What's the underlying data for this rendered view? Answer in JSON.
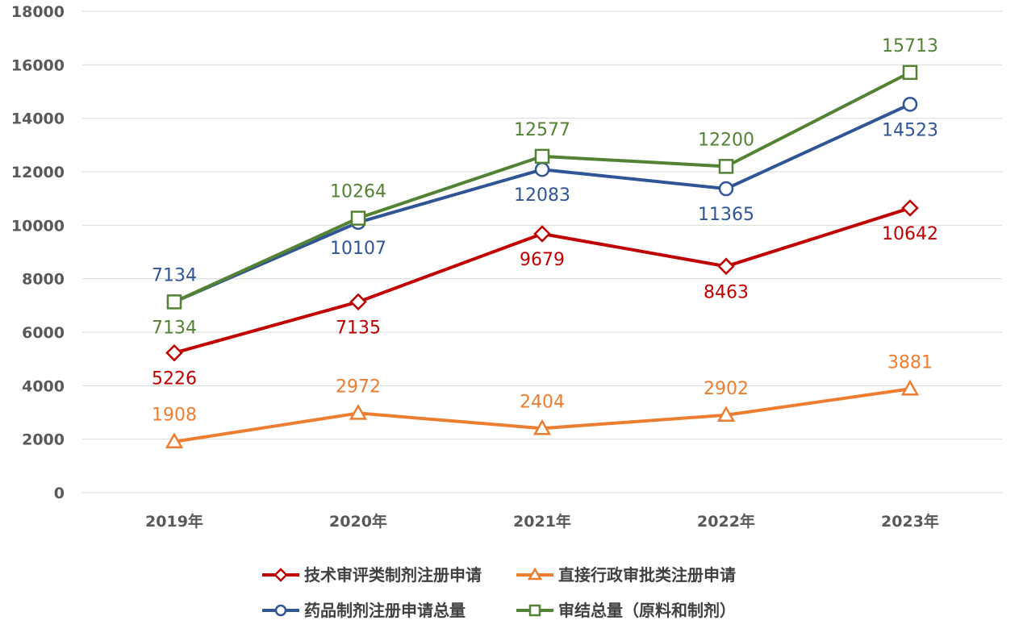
{
  "chart_data": {
    "type": "line",
    "categories": [
      "2019年",
      "2020年",
      "2021年",
      "2022年",
      "2023年"
    ],
    "ylim": [
      0,
      18000
    ],
    "yticks": [
      0,
      2000,
      4000,
      6000,
      8000,
      10000,
      12000,
      14000,
      16000,
      18000
    ],
    "grid": true,
    "legend_position": "bottom",
    "series": [
      {
        "name": "技术审评类制剂注册申请",
        "values": [
          5226,
          7135,
          9679,
          8463,
          10642
        ],
        "color": "#c00000",
        "marker": "diamond",
        "label_pos": "below"
      },
      {
        "name": "直接行政审批类注册申请",
        "values": [
          1908,
          2972,
          2404,
          2902,
          3881
        ],
        "color": "#ed7d31",
        "marker": "triangle",
        "label_pos": "above"
      },
      {
        "name": "药品制剂注册申请总量",
        "values": [
          7134,
          10107,
          12083,
          11365,
          14523
        ],
        "color": "#2f5597",
        "marker": "circle",
        "label_pos": [
          "above",
          "below",
          "below",
          "below",
          "below"
        ]
      },
      {
        "name": "审结总量（原料和制剂）",
        "values": [
          7134,
          10264,
          12577,
          12200,
          15713
        ],
        "color": "#548235",
        "marker": "square",
        "label_pos": [
          "below",
          "above",
          "above",
          "above",
          "above"
        ]
      }
    ]
  }
}
